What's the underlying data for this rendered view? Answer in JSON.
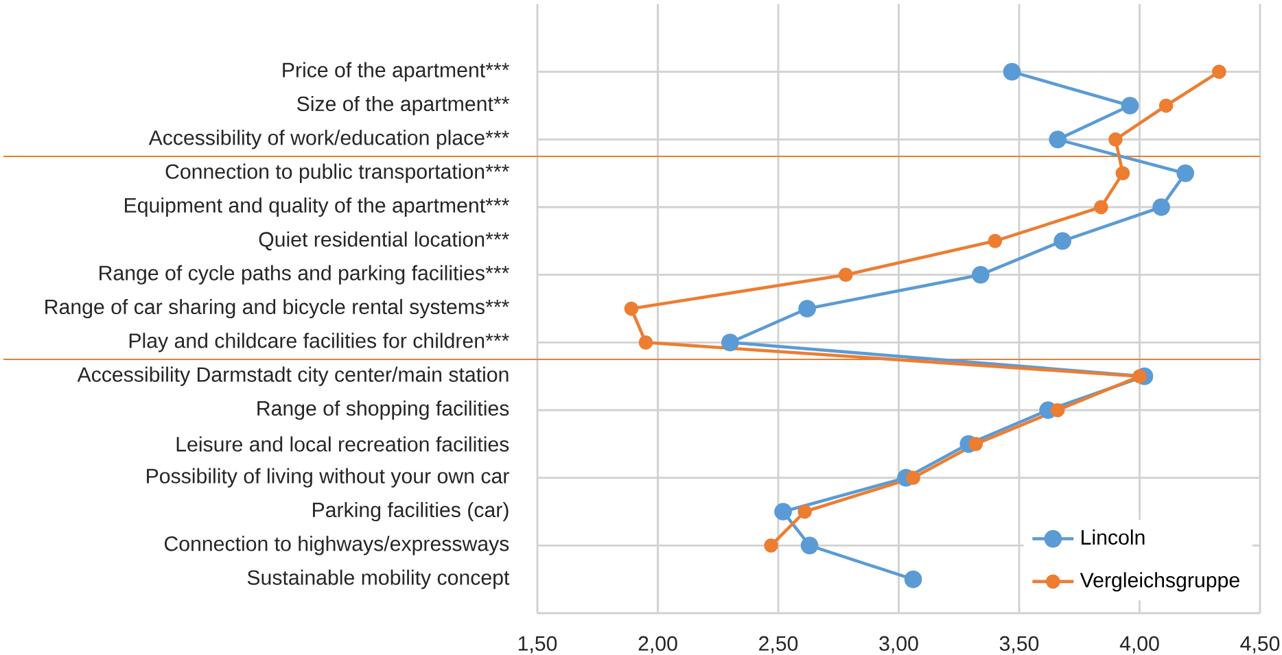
{
  "chart_data": {
    "type": "line",
    "categories": [
      "Price of the apartment***",
      "Size of the apartment**",
      "Accessibility of work/education place***",
      "Connection to public transportation***",
      "Equipment and quality of the apartment***",
      "Quiet residential location***",
      "Range of cycle paths and parking facilities***",
      "Range of car sharing and bicycle rental systems***",
      "Play and childcare facilities for children***",
      "Accessibility Darmstadt city center/main station",
      "Range of shopping facilities",
      "Leisure and local recreation facilities",
      "Possibility of living without your own car",
      "Parking facilities (car)",
      "Connection to highways/expressways",
      "Sustainable mobility concept"
    ],
    "orientation": "horizontal",
    "series": [
      {
        "name": "Lincoln",
        "color": "#5b9bd5",
        "values": [
          3.47,
          3.96,
          3.66,
          4.19,
          4.09,
          3.68,
          3.34,
          2.62,
          2.3,
          4.02,
          3.62,
          3.29,
          3.03,
          2.52,
          2.63,
          3.06
        ]
      },
      {
        "name": "Vergleichsgruppe",
        "color": "#ed7d31",
        "values": [
          4.33,
          4.11,
          3.9,
          3.93,
          3.84,
          3.4,
          2.78,
          1.89,
          1.95,
          4.0,
          3.66,
          3.32,
          3.06,
          2.61,
          2.47,
          null
        ]
      }
    ],
    "xlim": [
      1.5,
      4.5
    ],
    "xticks": [
      {
        "value": 1.5,
        "label": "1,50"
      },
      {
        "value": 2.0,
        "label": "2,00"
      },
      {
        "value": 2.5,
        "label": "2,50"
      },
      {
        "value": 3.0,
        "label": "3,00"
      },
      {
        "value": 3.5,
        "label": "3,50"
      },
      {
        "value": 4.0,
        "label": "4,00"
      },
      {
        "value": 4.5,
        "label": "4,50"
      }
    ],
    "grid": true,
    "legend": "bottom right",
    "marker": "circle",
    "line_style": "solid"
  }
}
